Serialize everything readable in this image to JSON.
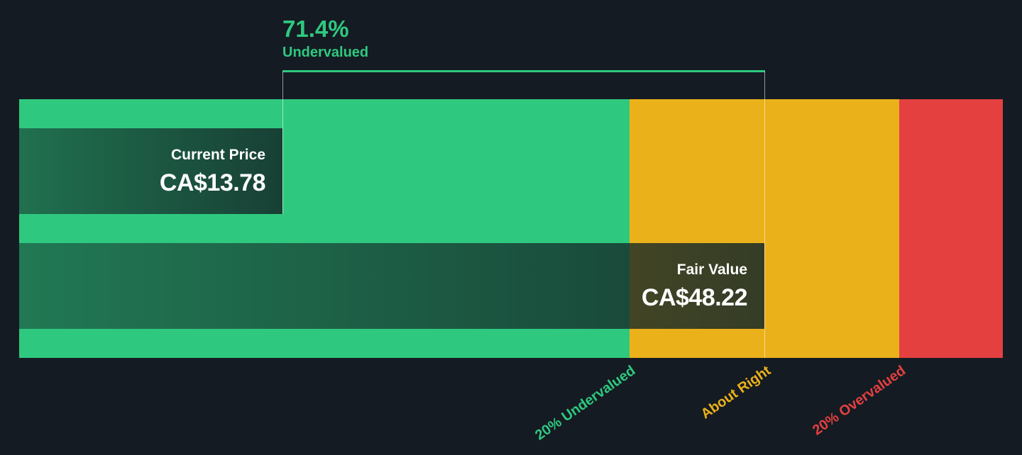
{
  "chart_data": {
    "type": "bar",
    "currency": "CA$",
    "current_price": {
      "label": "Current Price",
      "value": 13.78,
      "display": "CA$13.78"
    },
    "fair_value": {
      "label": "Fair Value",
      "value": 48.22,
      "display": "CA$48.22"
    },
    "discount": {
      "percent": "71.4%",
      "label": "Undervalued"
    },
    "zones": [
      {
        "name": "20% Undervalued",
        "color": "#2ec97f"
      },
      {
        "name": "About Right",
        "color": "#ebb11a"
      },
      {
        "name": "20% Overvalued",
        "color": "#e44040"
      }
    ]
  },
  "colors": {
    "background": "#151b23",
    "green": "#2ec97f",
    "yellow": "#ebb11a",
    "red": "#e44040"
  }
}
